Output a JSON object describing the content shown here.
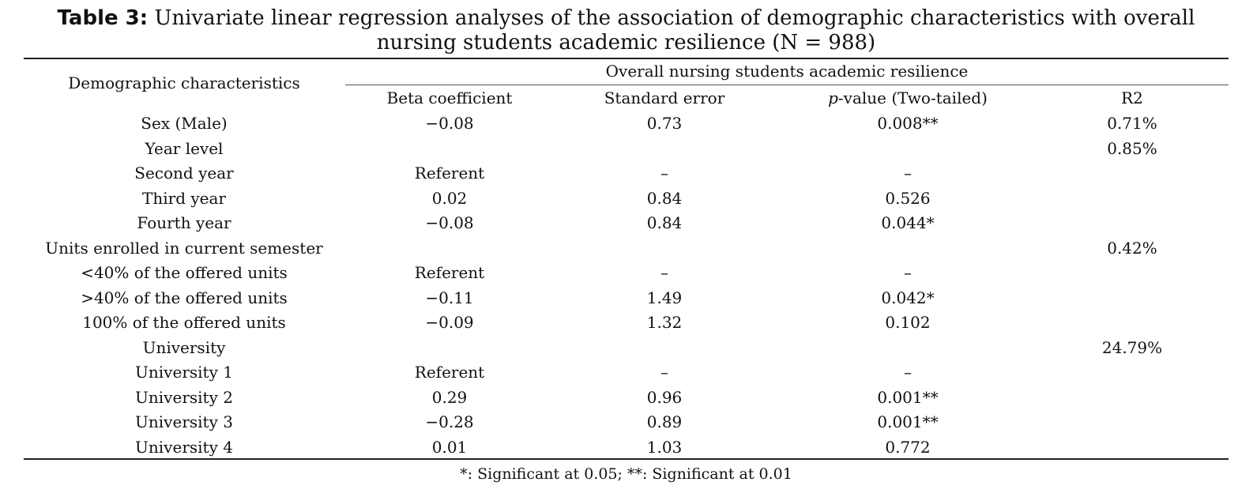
{
  "caption": {
    "label": "Table 3:",
    "text": "Univariate linear regression analyses of the association of demographic characteristics with overall nursing students academic resilience (N = 988)"
  },
  "header": {
    "row_label": "Demographic characteristics",
    "group_label": "Overall nursing students academic resilience",
    "columns": {
      "beta": "Beta coefficient",
      "se": "Standard error",
      "p_italic": "p",
      "p_rest": "-value (Two-tailed)",
      "r2": "R2"
    }
  },
  "rows": [
    {
      "label": "Sex (Male)",
      "beta": "−0.08",
      "se": "0.73",
      "p": "0.008**",
      "r2": "0.71%"
    },
    {
      "label": "Year level",
      "beta": "",
      "se": "",
      "p": "",
      "r2": "0.85%"
    },
    {
      "label": "Second year",
      "beta": "Referent",
      "se": "–",
      "p": "–",
      "r2": ""
    },
    {
      "label": "Third year",
      "beta": "0.02",
      "se": "0.84",
      "p": "0.526",
      "r2": ""
    },
    {
      "label": "Fourth year",
      "beta": "−0.08",
      "se": "0.84",
      "p": "0.044*",
      "r2": ""
    },
    {
      "label": "Units enrolled in current semester",
      "beta": "",
      "se": "",
      "p": "",
      "r2": "0.42%"
    },
    {
      "label": "<40% of the offered units",
      "beta": "Referent",
      "se": "–",
      "p": "–",
      "r2": ""
    },
    {
      "label": ">40% of the offered units",
      "beta": "−0.11",
      "se": "1.49",
      "p": "0.042*",
      "r2": ""
    },
    {
      "label": "100% of the offered units",
      "beta": "−0.09",
      "se": "1.32",
      "p": "0.102",
      "r2": ""
    },
    {
      "label": "University",
      "beta": "",
      "se": "",
      "p": "",
      "r2": "24.79%"
    },
    {
      "label": "University 1",
      "beta": "Referent",
      "se": "–",
      "p": "–",
      "r2": ""
    },
    {
      "label": "University 2",
      "beta": "0.29",
      "se": "0.96",
      "p": "0.001**",
      "r2": ""
    },
    {
      "label": "University 3",
      "beta": "−0.28",
      "se": "0.89",
      "p": "0.001**",
      "r2": ""
    },
    {
      "label": "University 4",
      "beta": "0.01",
      "se": "1.03",
      "p": "0.772",
      "r2": ""
    }
  ],
  "footnote": "*: Significant at 0.05; **: Significant at 0.01"
}
